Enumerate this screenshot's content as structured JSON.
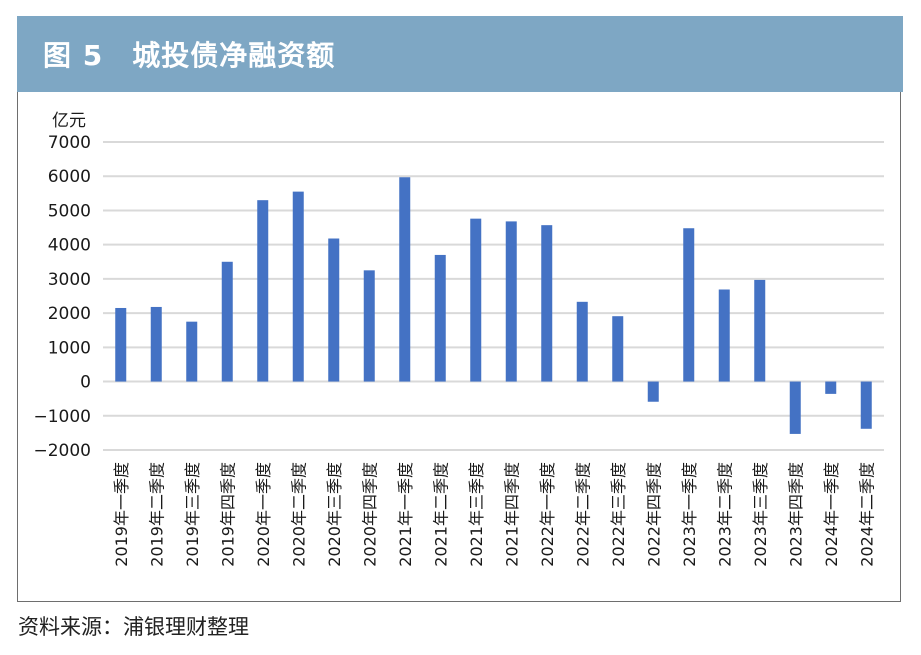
{
  "header": {
    "title": "图 5　城投债净融资额"
  },
  "source": "资料来源：浦银理财整理",
  "colors": {
    "header_bg": "#7ea7c4",
    "bar": "#4472c4",
    "grid": "#d9d9d9",
    "frame": "#6e6e6e"
  },
  "chart_data": {
    "type": "bar",
    "title": "城投债净融资额",
    "ylabel": "亿元",
    "ylim": [
      -2000,
      7000
    ],
    "yticks": [
      7000,
      6000,
      5000,
      4000,
      3000,
      2000,
      1000,
      0,
      -1000,
      -2000
    ],
    "ytick_labels": [
      "7000",
      "6000",
      "5000",
      "4000",
      "3000",
      "2000",
      "1000",
      "0",
      "−1000",
      "−2000"
    ],
    "grid": true,
    "legend": "none",
    "categories": [
      "2019年一季度",
      "2019年二季度",
      "2019年三季度",
      "2019年四季度",
      "2020年一季度",
      "2020年二季度",
      "2020年三季度",
      "2020年四季度",
      "2021年一季度",
      "2021年二季度",
      "2021年三季度",
      "2021年四季度",
      "2022年一季度",
      "2022年二季度",
      "2022年三季度",
      "2022年四季度",
      "2023年一季度",
      "2023年二季度",
      "2023年三季度",
      "2023年四季度",
      "2024年一季度",
      "2024年二季度"
    ],
    "values": [
      2150,
      2180,
      1750,
      3500,
      5300,
      5550,
      4180,
      3250,
      5970,
      3700,
      4760,
      4680,
      4570,
      2330,
      1910,
      -590,
      4480,
      2690,
      2970,
      -1530,
      -360,
      -1380
    ]
  }
}
